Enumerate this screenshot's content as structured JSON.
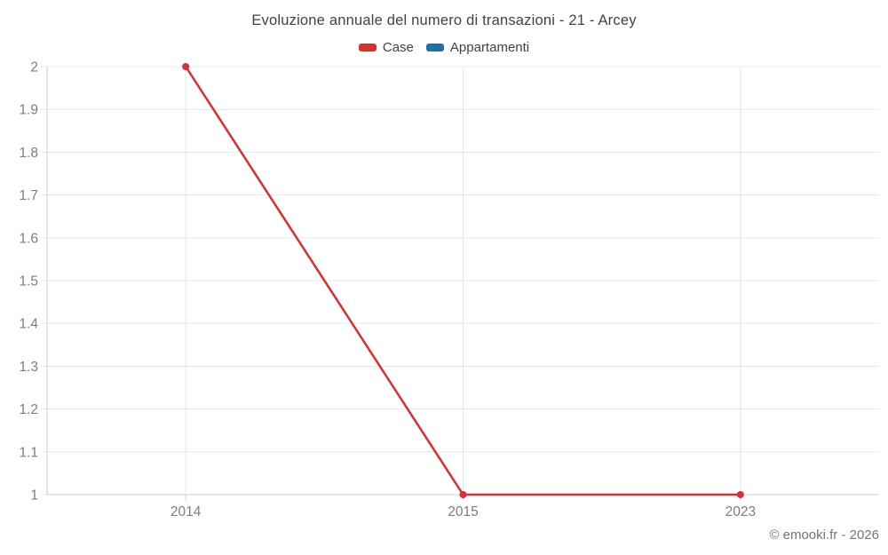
{
  "chart_data": {
    "type": "line",
    "title": "Evoluzione annuale del numero di transazioni - 21 - Arcey",
    "categories": [
      "2014",
      "2015",
      "2023"
    ],
    "series": [
      {
        "name": "Case",
        "color": "#dc2e2e",
        "values": [
          2,
          1,
          1
        ]
      },
      {
        "name": "Appartamenti",
        "color": "#1c71a5",
        "values": []
      }
    ],
    "ylim": [
      1,
      2
    ],
    "yticks": [
      1,
      1.1,
      1.2,
      1.3,
      1.4,
      1.5,
      1.6,
      1.7,
      1.8,
      1.9,
      2
    ],
    "grid": true,
    "legend_position": "top",
    "xlabel": "",
    "ylabel": ""
  },
  "footer": {
    "credit": "© emooki.fr - 2026"
  },
  "colors": {
    "grid": "#e7e7e7",
    "axis": "#cccccc",
    "tick_label": "#7d7d7d",
    "title": "#424242",
    "legend_text": "#424242",
    "credit": "#757575",
    "background": "#ffffff"
  }
}
